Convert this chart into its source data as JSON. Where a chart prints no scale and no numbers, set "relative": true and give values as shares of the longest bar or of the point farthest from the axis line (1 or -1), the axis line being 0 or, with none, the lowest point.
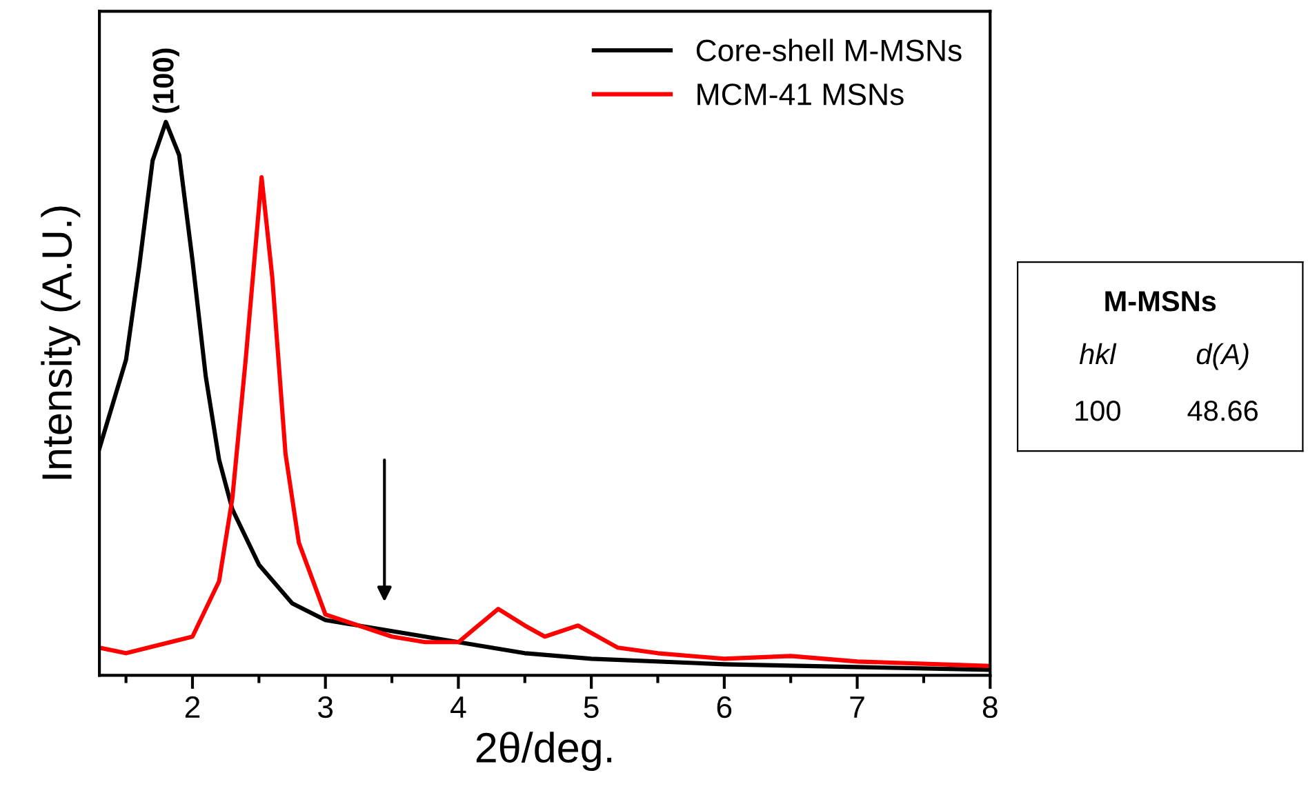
{
  "chart_data": [
    {
      "type": "line",
      "xlabel": "2θ/deg.",
      "ylabel": "Intensity (A.U.)",
      "relative": true,
      "legend": "top right",
      "xlim": [
        1.3,
        8
      ],
      "xticks": [
        {
          "value": 1.5,
          "label": null
        },
        2,
        {
          "value": 2.5,
          "label": null
        },
        3,
        {
          "value": 3.5,
          "label": null
        },
        4,
        {
          "value": 4.5,
          "label": null
        },
        5,
        {
          "value": 5.5,
          "label": null
        },
        6,
        {
          "value": 6.5,
          "label": null
        },
        7,
        {
          "value": 7.5,
          "label": null
        },
        8
      ],
      "annotations": [
        {
          "text": "(100)",
          "x": 1.8,
          "y": 1.0
        }
      ],
      "series": [
        {
          "name": "Core-shell M-MSNs",
          "color": "#000000",
          "x": [
            1.3,
            1.5,
            1.6,
            1.7,
            1.8,
            1.9,
            2.0,
            2.1,
            2.2,
            2.3,
            2.5,
            2.75,
            3.0,
            3.5,
            4.0,
            4.5,
            5.0,
            6.0,
            7.0,
            8.0
          ],
          "values": [
            0.41,
            0.57,
            0.74,
            0.93,
            1.0,
            0.94,
            0.75,
            0.54,
            0.39,
            0.3,
            0.2,
            0.13,
            0.1,
            0.08,
            0.06,
            0.04,
            0.03,
            0.02,
            0.015,
            0.01
          ]
        },
        {
          "name": "MCM-41 MSNs",
          "color": "#ff0000",
          "x": [
            1.3,
            1.5,
            2.0,
            2.2,
            2.3,
            2.4,
            2.52,
            2.6,
            2.7,
            2.8,
            3.0,
            3.5,
            3.75,
            4.0,
            4.15,
            4.3,
            4.5,
            4.65,
            4.9,
            5.2,
            5.5,
            6.0,
            6.5,
            7.0,
            8.0
          ],
          "values": [
            0.05,
            0.04,
            0.07,
            0.17,
            0.32,
            0.57,
            0.9,
            0.72,
            0.4,
            0.24,
            0.11,
            0.07,
            0.06,
            0.06,
            0.09,
            0.12,
            0.09,
            0.07,
            0.09,
            0.05,
            0.04,
            0.03,
            0.035,
            0.025,
            0.017
          ]
        }
      ]
    },
    {
      "type": "other",
      "title": "M-MSNs",
      "annotations": [
        "hkl",
        "d(A)",
        "100",
        "48.66"
      ]
    }
  ]
}
